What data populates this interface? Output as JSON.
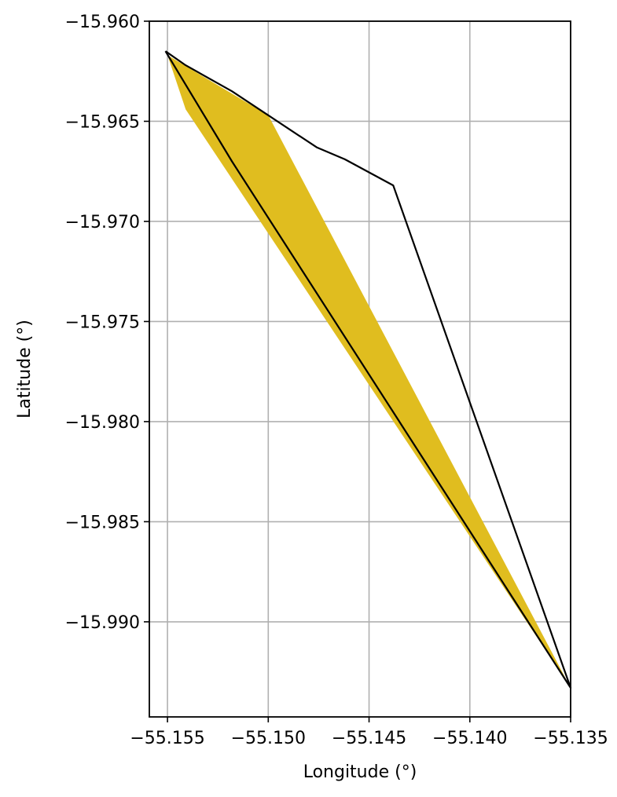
{
  "chart_data": {
    "type": "area",
    "xlabel": "Longitude (°)",
    "ylabel": "Latitude (°)",
    "xlim": [
      -55.1559,
      -55.135
    ],
    "ylim": [
      -15.99475,
      -15.96
    ],
    "grid": true,
    "xticks": [
      -55.155,
      -55.15,
      -55.145,
      -55.14,
      -55.135
    ],
    "xtick_labels": [
      "−55.155",
      "−55.150",
      "−55.145",
      "−55.140",
      "−55.135"
    ],
    "yticks": [
      -15.96,
      -15.965,
      -15.97,
      -15.975,
      -15.98,
      -15.985,
      -15.99
    ],
    "ytick_labels": [
      "−15.960",
      "−15.965",
      "−15.970",
      "−15.975",
      "−15.980",
      "−15.985",
      "−15.990"
    ],
    "colors": {
      "fill": "#e0bd1f",
      "outline": "#000000",
      "grid": "#b0b0b0"
    },
    "filled_polygon": [
      [
        -55.155,
        -15.9617
      ],
      [
        -55.15,
        -15.9647
      ],
      [
        -55.135,
        -15.9933
      ],
      [
        -55.1541,
        -15.9644
      ]
    ],
    "outline_polygon": [
      [
        -55.1551,
        -15.9615
      ],
      [
        -55.1541,
        -15.9622
      ],
      [
        -55.1518,
        -15.9635
      ],
      [
        -55.15,
        -15.9647
      ],
      [
        -55.1476,
        -15.9663
      ],
      [
        -55.1462,
        -15.9669
      ],
      [
        -55.1438,
        -15.9682
      ],
      [
        -55.135,
        -15.9933
      ],
      [
        -55.1518,
        -15.967
      ],
      [
        -55.1551,
        -15.9615
      ]
    ]
  }
}
